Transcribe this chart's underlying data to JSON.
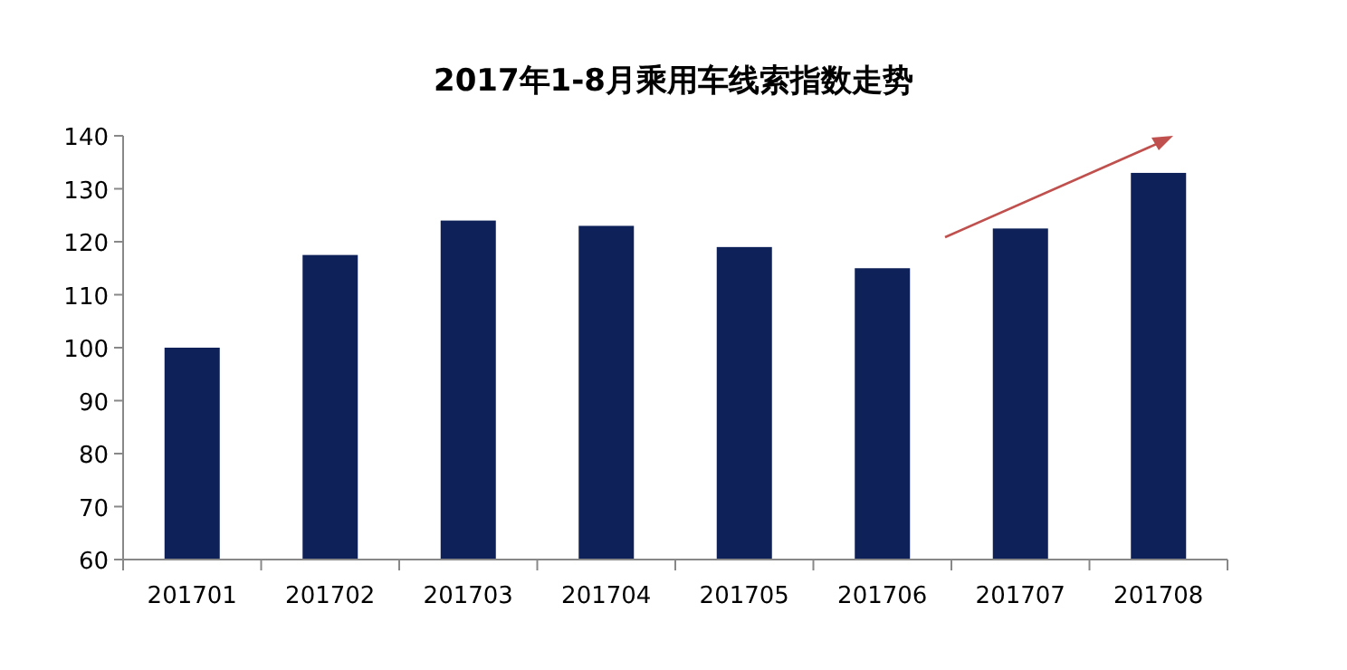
{
  "chart_data": {
    "type": "bar",
    "title": "2017年1-8月乘用车线索指数走势",
    "categories": [
      "201701",
      "201702",
      "201703",
      "201704",
      "201705",
      "201706",
      "201707",
      "201708"
    ],
    "values": [
      100,
      117.5,
      124,
      123,
      119,
      115,
      122.5,
      133
    ],
    "color": "#0e2158",
    "ylim": [
      60,
      140
    ],
    "yticks": [
      60,
      70,
      80,
      90,
      100,
      110,
      120,
      130,
      140
    ],
    "grid": false
  }
}
